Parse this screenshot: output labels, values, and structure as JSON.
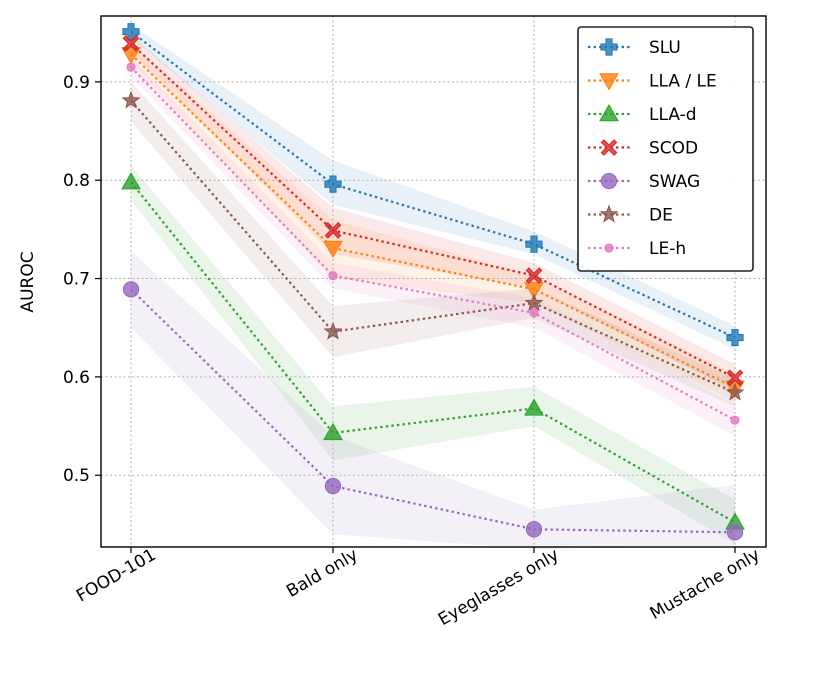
{
  "chart_data": {
    "type": "line",
    "title": "",
    "xlabel": "",
    "ylabel": "AUROC",
    "categories": [
      "FOOD-101",
      "Bald only",
      "Eyeglasses only",
      "Mustache only"
    ],
    "ylim": [
      0.427,
      0.967
    ],
    "yticks": [
      0.5,
      0.6,
      0.7,
      0.8,
      0.9
    ],
    "ytick_labels": [
      "0.5",
      "0.6",
      "0.7",
      "0.8",
      "0.9"
    ],
    "grid": true,
    "legend_position": "top-right",
    "series": [
      {
        "name": "SLU",
        "color": "#1f77b4",
        "marker": "plus",
        "values": [
          0.951,
          0.796,
          0.735,
          0.64
        ],
        "band_low": [
          0.945,
          0.775,
          0.725,
          0.628
        ],
        "band_high": [
          0.958,
          0.82,
          0.748,
          0.652
        ]
      },
      {
        "name": "LLA / LE",
        "color": "#ff7f0e",
        "marker": "triangle-down",
        "values": [
          0.928,
          0.731,
          0.689,
          0.589
        ],
        "band_low": [
          0.918,
          0.7,
          0.675,
          0.575
        ],
        "band_high": [
          0.94,
          0.76,
          0.703,
          0.603
        ]
      },
      {
        "name": "LLA-d",
        "color": "#2ca02c",
        "marker": "triangle-up",
        "values": [
          0.798,
          0.543,
          0.568,
          0.452
        ],
        "band_low": [
          0.78,
          0.515,
          0.55,
          0.43
        ],
        "band_high": [
          0.815,
          0.57,
          0.59,
          0.475
        ]
      },
      {
        "name": "SCOD",
        "color": "#d62728",
        "marker": "x",
        "values": [
          0.939,
          0.749,
          0.703,
          0.599
        ],
        "band_low": [
          0.93,
          0.725,
          0.69,
          0.585
        ],
        "band_high": [
          0.948,
          0.772,
          0.716,
          0.613
        ]
      },
      {
        "name": "SWAG",
        "color": "#9467bd",
        "marker": "circle",
        "values": [
          0.689,
          0.489,
          0.445,
          0.442
        ],
        "band_low": [
          0.65,
          0.44,
          0.425,
          0.428
        ],
        "band_high": [
          0.728,
          0.54,
          0.465,
          0.49
        ]
      },
      {
        "name": "DE",
        "color": "#8c564b",
        "marker": "star",
        "values": [
          0.881,
          0.646,
          0.675,
          0.584
        ],
        "band_low": [
          0.86,
          0.62,
          0.66,
          0.57
        ],
        "band_high": [
          0.9,
          0.672,
          0.69,
          0.598
        ]
      },
      {
        "name": "LE-h",
        "color": "#e377c2",
        "marker": "point",
        "values": [
          0.915,
          0.703,
          0.665,
          0.556
        ],
        "band_low": [
          0.905,
          0.69,
          0.65,
          0.54
        ],
        "band_high": [
          0.925,
          0.716,
          0.68,
          0.572
        ]
      }
    ]
  }
}
